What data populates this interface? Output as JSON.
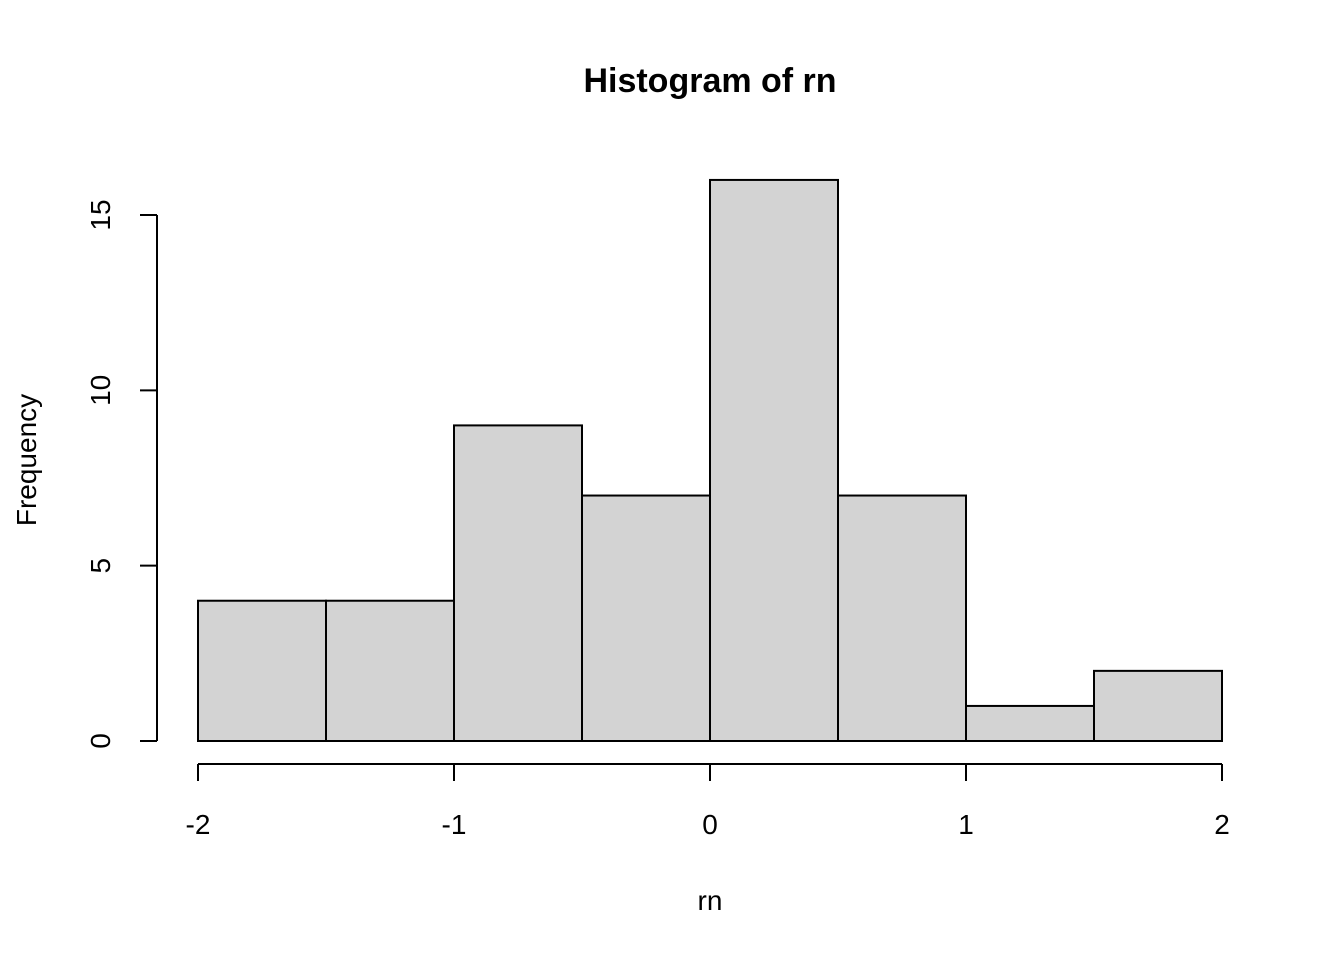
{
  "chart_data": {
    "type": "bar",
    "title": "Histogram of rn",
    "xlabel": "rn",
    "ylabel": "Frequency",
    "bins": [
      {
        "from": -2.0,
        "to": -1.5,
        "count": 4
      },
      {
        "from": -1.5,
        "to": -1.0,
        "count": 4
      },
      {
        "from": -1.0,
        "to": -0.5,
        "count": 9
      },
      {
        "from": -0.5,
        "to": 0.0,
        "count": 7
      },
      {
        "from": 0.0,
        "to": 0.5,
        "count": 16
      },
      {
        "from": 0.5,
        "to": 1.0,
        "count": 7
      },
      {
        "from": 1.0,
        "to": 1.5,
        "count": 1
      },
      {
        "from": 1.5,
        "to": 2.0,
        "count": 2
      }
    ],
    "xlim": [
      -2,
      2
    ],
    "ylim": [
      0,
      16
    ],
    "xticks": [
      -2,
      -1,
      0,
      1,
      2
    ],
    "yticks": [
      0,
      5,
      10,
      15
    ],
    "grid": false,
    "colors": {
      "bar_fill": "#d3d3d3",
      "bar_stroke": "#000000"
    }
  }
}
